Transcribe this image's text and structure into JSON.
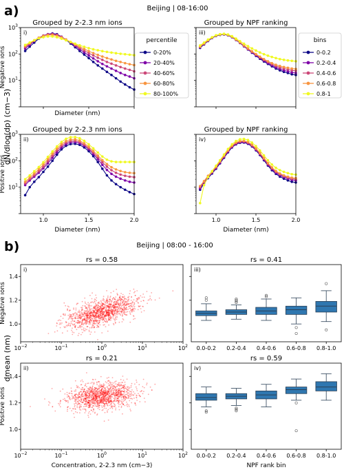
{
  "figure": {
    "panel_a_letter": "a)",
    "panel_b_letter": "b)",
    "panel_a_title": "Beijing | 08-16:00",
    "panel_b_title": "Beijing | 08:00 - 16:00",
    "panel_a_ylabel": "dN/dlog(dp) (cm−3)",
    "panel_b_ylabel": "dmean (nm)"
  },
  "legend_percentile": {
    "title": "percentile",
    "items": [
      "0-20%",
      "20-40%",
      "40-60%",
      "60-80%",
      "80-100%"
    ]
  },
  "legend_bins": {
    "title": "bins",
    "items": [
      "0-0.2",
      "0.2-0.4",
      "0.4-0.6",
      "0.6-0.8",
      "0.8-1"
    ]
  },
  "colors": {
    "series": [
      "#0d0887",
      "#7e03a8",
      "#cc4778",
      "#f89540",
      "#f0f921"
    ],
    "scatter": "#ff0000",
    "box_fill": "#2f77b0",
    "box_edge": "#2a3f55"
  },
  "chart_data": [
    {
      "id": "a-i",
      "type": "line",
      "panel_label": "i)",
      "title": "Grouped by 2-2.3 nm ions",
      "xlabel": "Diameter (nm)",
      "ylabel": "Negative ions",
      "xscale": "linear",
      "yscale": "log",
      "xlim": [
        0.75,
        2.0
      ],
      "ylim": [
        1,
        1000
      ],
      "xticks": [],
      "yticks": [
        "10^1",
        "10^2",
        "10^3"
      ],
      "x": [
        0.8,
        0.85,
        0.9,
        0.95,
        1.0,
        1.05,
        1.1,
        1.15,
        1.2,
        1.25,
        1.3,
        1.35,
        1.4,
        1.45,
        1.5,
        1.55,
        1.6,
        1.65,
        1.7,
        1.75,
        1.8,
        1.85,
        1.9,
        1.95,
        2.0
      ],
      "series": [
        {
          "name": "0-20%",
          "values": [
            130,
            190,
            270,
            380,
            480,
            560,
            600,
            560,
            450,
            340,
            250,
            180,
            130,
            95,
            70,
            50,
            37,
            28,
            21,
            16,
            12,
            9,
            7,
            5.5,
            4.5
          ]
        },
        {
          "name": "20-40%",
          "values": [
            160,
            220,
            310,
            410,
            500,
            560,
            580,
            540,
            450,
            350,
            270,
            200,
            150,
            115,
            88,
            68,
            53,
            42,
            34,
            28,
            23,
            19,
            16,
            14,
            12
          ]
        },
        {
          "name": "40-60%",
          "values": [
            180,
            240,
            320,
            410,
            490,
            540,
            560,
            520,
            440,
            350,
            280,
            215,
            170,
            135,
            108,
            88,
            72,
            60,
            50,
            43,
            37,
            32,
            28,
            25,
            22
          ]
        },
        {
          "name": "60-80%",
          "values": [
            200,
            255,
            330,
            410,
            480,
            520,
            530,
            490,
            420,
            350,
            285,
            230,
            188,
            155,
            128,
            108,
            92,
            80,
            70,
            62,
            55,
            50,
            45,
            41,
            38
          ]
        },
        {
          "name": "80-100%",
          "values": [
            220,
            270,
            330,
            390,
            430,
            460,
            460,
            430,
            380,
            330,
            285,
            245,
            212,
            187,
            166,
            150,
            138,
            128,
            120,
            113,
            107,
            102,
            98,
            94,
            90
          ]
        }
      ]
    },
    {
      "id": "a-iii",
      "type": "line",
      "panel_label": "iii)",
      "title": "Grouped by NPF ranking",
      "xlabel": "",
      "ylabel": "",
      "xscale": "linear",
      "yscale": "log",
      "xlim": [
        0.75,
        2.0
      ],
      "ylim": [
        1,
        1000
      ],
      "xticks": [],
      "yticks": [],
      "x": [
        0.8,
        0.85,
        0.9,
        0.95,
        1.0,
        1.05,
        1.1,
        1.15,
        1.2,
        1.25,
        1.3,
        1.35,
        1.4,
        1.45,
        1.5,
        1.55,
        1.6,
        1.65,
        1.7,
        1.75,
        1.8,
        1.85,
        1.9,
        1.95,
        2.0
      ],
      "series": [
        {
          "name": "0-0.2",
          "values": [
            170,
            230,
            310,
            400,
            480,
            530,
            550,
            510,
            430,
            340,
            260,
            195,
            148,
            112,
            85,
            66,
            52,
            42,
            34,
            28,
            24,
            21,
            19,
            17,
            16
          ]
        },
        {
          "name": "0.2-0.4",
          "values": [
            180,
            240,
            320,
            410,
            490,
            540,
            560,
            520,
            440,
            345,
            265,
            200,
            152,
            116,
            89,
            70,
            56,
            45,
            37,
            31,
            27,
            24,
            22,
            20,
            19
          ]
        },
        {
          "name": "0.4-0.6",
          "values": [
            185,
            245,
            325,
            415,
            495,
            545,
            565,
            525,
            445,
            350,
            270,
            205,
            157,
            121,
            94,
            74,
            60,
            49,
            41,
            35,
            31,
            28,
            26,
            24,
            23
          ]
        },
        {
          "name": "0.6-0.8",
          "values": [
            190,
            250,
            330,
            420,
            500,
            550,
            570,
            530,
            450,
            355,
            275,
            210,
            162,
            126,
            99,
            79,
            64,
            53,
            45,
            39,
            35,
            32,
            30,
            28,
            27
          ]
        },
        {
          "name": "0.8-1",
          "values": [
            210,
            270,
            350,
            430,
            510,
            560,
            580,
            545,
            470,
            380,
            305,
            245,
            198,
            162,
            135,
            114,
            98,
            86,
            77,
            70,
            64,
            60,
            57,
            55,
            53
          ]
        }
      ]
    },
    {
      "id": "a-ii",
      "type": "line",
      "panel_label": "ii)",
      "title": "Grouped by 2-2.3 nm ions",
      "xlabel": "Diameter (nm)",
      "ylabel": "Positive ions",
      "xscale": "linear",
      "yscale": "log",
      "xlim": [
        0.75,
        2.0
      ],
      "ylim": [
        1,
        1000
      ],
      "xticks": [
        "1.0",
        "1.5",
        "2.0"
      ],
      "yticks": [
        "10^1",
        "10^2",
        "10^3"
      ],
      "x": [
        0.8,
        0.85,
        0.9,
        0.95,
        1.0,
        1.05,
        1.1,
        1.15,
        1.2,
        1.25,
        1.3,
        1.35,
        1.4,
        1.45,
        1.5,
        1.55,
        1.6,
        1.65,
        1.7,
        1.75,
        1.8,
        1.85,
        1.9,
        1.95,
        2.0
      ],
      "series": [
        {
          "name": "0-20%",
          "values": [
            5,
            10,
            16,
            24,
            38,
            60,
            100,
            170,
            270,
            370,
            430,
            440,
            400,
            320,
            230,
            150,
            90,
            50,
            28,
            18,
            13,
            10,
            8,
            6.5,
            5.5
          ]
        },
        {
          "name": "20-40%",
          "values": [
            12,
            18,
            25,
            35,
            52,
            80,
            130,
            210,
            320,
            430,
            500,
            510,
            460,
            370,
            270,
            180,
            115,
            70,
            45,
            32,
            25,
            21,
            18,
            16,
            15
          ]
        },
        {
          "name": "40-60%",
          "values": [
            14,
            20,
            28,
            40,
            60,
            95,
            155,
            250,
            370,
            490,
            560,
            570,
            510,
            410,
            300,
            205,
            135,
            88,
            60,
            44,
            35,
            30,
            27,
            25,
            24
          ]
        },
        {
          "name": "60-80%",
          "values": [
            16,
            23,
            33,
            48,
            72,
            115,
            185,
            290,
            430,
            560,
            640,
            650,
            580,
            460,
            340,
            235,
            158,
            106,
            75,
            57,
            47,
            41,
            37,
            35,
            34
          ]
        },
        {
          "name": "80-100%",
          "values": [
            20,
            28,
            40,
            58,
            88,
            140,
            225,
            350,
            520,
            680,
            780,
            790,
            710,
            570,
            420,
            295,
            205,
            145,
            110,
            95,
            90,
            90,
            90,
            90,
            90
          ]
        }
      ]
    },
    {
      "id": "a-iv",
      "type": "line",
      "panel_label": "iv)",
      "title": "Grouped by NPF ranking",
      "xlabel": "Diameter (nm)",
      "ylabel": "",
      "xscale": "linear",
      "yscale": "log",
      "xlim": [
        0.75,
        2.0
      ],
      "ylim": [
        1,
        1000
      ],
      "xticks": [
        "1.0",
        "1.5",
        "2.0"
      ],
      "yticks": [],
      "x": [
        0.8,
        0.85,
        0.9,
        0.95,
        1.0,
        1.05,
        1.1,
        1.15,
        1.2,
        1.25,
        1.3,
        1.35,
        1.4,
        1.45,
        1.5,
        1.55,
        1.6,
        1.65,
        1.7,
        1.75,
        1.8,
        1.85,
        1.9,
        1.95,
        2.0
      ],
      "series": [
        {
          "name": "0-0.2",
          "values": [
            8,
            14,
            22,
            33,
            50,
            80,
            130,
            210,
            320,
            420,
            480,
            490,
            440,
            350,
            250,
            165,
            105,
            66,
            44,
            32,
            25,
            21,
            18,
            16,
            15
          ]
        },
        {
          "name": "0.2-0.4",
          "values": [
            9,
            15,
            23,
            35,
            53,
            85,
            138,
            222,
            335,
            440,
            500,
            510,
            460,
            365,
            262,
            175,
            112,
            71,
            48,
            35,
            28,
            24,
            21,
            19,
            18
          ]
        },
        {
          "name": "0.4-0.6",
          "values": [
            10,
            16,
            25,
            37,
            56,
            90,
            146,
            235,
            352,
            462,
            525,
            535,
            482,
            383,
            276,
            185,
            119,
            76,
            52,
            38,
            31,
            26,
            23,
            21,
            20
          ]
        },
        {
          "name": "0.6-0.8",
          "values": [
            11,
            17,
            27,
            40,
            60,
            97,
            157,
            252,
            376,
            492,
            560,
            570,
            513,
            408,
            295,
            198,
            128,
            82,
            56,
            41,
            33,
            28,
            25,
            23,
            22
          ]
        },
        {
          "name": "0.8-1",
          "values": [
            2.5,
            12,
            24,
            40,
            65,
            105,
            172,
            280,
            420,
            560,
            650,
            670,
            610,
            490,
            360,
            245,
            160,
            104,
            72,
            54,
            44,
            38,
            34,
            31,
            30
          ]
        }
      ]
    },
    {
      "id": "b-i",
      "type": "scatter",
      "panel_label": "i)",
      "title": "rs = 0.58",
      "xlabel": "",
      "ylabel": "Negative ions",
      "xscale": "log",
      "yscale": "linear",
      "xlim": [
        0.01,
        100
      ],
      "ylim": [
        0.85,
        1.5
      ],
      "xticks": [
        "10^-2",
        "10^-1",
        "10^0",
        "10^1",
        "10^2"
      ],
      "yticks": [
        "1.0",
        "1.2",
        "1.4"
      ],
      "cloud": {
        "center_logx": 0.0,
        "center_y": 1.1,
        "spread_logx": 0.45,
        "spread_y": 0.055,
        "slope": 0.09,
        "n": 1300
      }
    },
    {
      "id": "b-ii",
      "type": "scatter",
      "panel_label": "ii)",
      "title": "rs = 0.21",
      "xlabel": "Concentration, 2-2.3 nm (cm−3)",
      "ylabel": "Positive ions",
      "xscale": "log",
      "yscale": "linear",
      "xlim": [
        0.01,
        100
      ],
      "ylim": [
        0.85,
        1.5
      ],
      "xticks": [
        "10^-2",
        "10^-1",
        "10^0",
        "10^1",
        "10^2"
      ],
      "yticks": [
        "1.0",
        "1.2",
        "1.4"
      ],
      "cloud": {
        "center_logx": 0.0,
        "center_y": 1.25,
        "spread_logx": 0.42,
        "spread_y": 0.05,
        "slope": 0.035,
        "n": 1300
      }
    },
    {
      "id": "b-iii",
      "type": "box",
      "panel_label": "iii)",
      "title": "rs = 0.41",
      "xlabel": "",
      "ylabel": "",
      "ylim": [
        0.85,
        1.5
      ],
      "categories": [
        "0.0-0.2",
        "0.2-0.4",
        "0.4-0.6",
        "0.6-0.8",
        "0.8-1.0"
      ],
      "boxes": [
        {
          "whislo": 1.03,
          "q1": 1.07,
          "med": 1.09,
          "q3": 1.11,
          "whishi": 1.17,
          "fliers": [
            1.2,
            1.22
          ]
        },
        {
          "whislo": 1.04,
          "q1": 1.08,
          "med": 1.1,
          "q3": 1.12,
          "whishi": 1.16,
          "fliers": [
            1.18,
            1.19,
            1.2,
            1.21
          ]
        },
        {
          "whislo": 1.03,
          "q1": 1.08,
          "med": 1.11,
          "q3": 1.14,
          "whishi": 1.21,
          "fliers": [
            1.23,
            1.24
          ]
        },
        {
          "whislo": 1.0,
          "q1": 1.08,
          "med": 1.12,
          "q3": 1.15,
          "whishi": 1.22,
          "fliers": [
            0.97,
            0.92
          ]
        },
        {
          "whislo": 1.02,
          "q1": 1.1,
          "med": 1.15,
          "q3": 1.19,
          "whishi": 1.28,
          "fliers": [
            1.34,
            0.95
          ]
        }
      ]
    },
    {
      "id": "b-iv",
      "type": "box",
      "panel_label": "iv)",
      "title": "rs = 0.59",
      "xlabel": "NPF rank bin",
      "ylabel": "",
      "ylim": [
        0.85,
        1.5
      ],
      "categories": [
        "0.0-0.2",
        "0.2-0.4",
        "0.4-0.6",
        "0.6-0.8",
        "0.8-1.0"
      ],
      "boxes": [
        {
          "whislo": 1.17,
          "q1": 1.22,
          "med": 1.24,
          "q3": 1.27,
          "whishi": 1.32,
          "fliers": [
            1.14,
            1.13
          ]
        },
        {
          "whislo": 1.18,
          "q1": 1.23,
          "med": 1.25,
          "q3": 1.27,
          "whishi": 1.31,
          "fliers": [
            1.16,
            1.15,
            1.14
          ]
        },
        {
          "whislo": 1.17,
          "q1": 1.23,
          "med": 1.26,
          "q3": 1.29,
          "whishi": 1.34,
          "fliers": []
        },
        {
          "whislo": 1.22,
          "q1": 1.27,
          "med": 1.3,
          "q3": 1.32,
          "whishi": 1.38,
          "fliers": [
            1.2,
            0.99
          ]
        },
        {
          "whislo": 1.22,
          "q1": 1.29,
          "med": 1.32,
          "q3": 1.36,
          "whishi": 1.42,
          "fliers": []
        }
      ]
    }
  ]
}
